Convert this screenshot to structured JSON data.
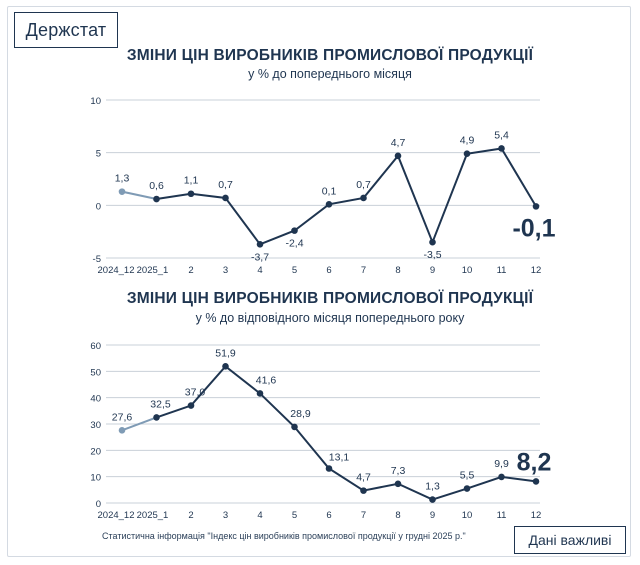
{
  "brand": "Держстат",
  "footer_note": "Статистична інформація \"Індекс цін виробників промислової продукції у грудні 2025 р.\"",
  "badge": "Дані важливі",
  "colors": {
    "line": "#1f3550",
    "line_prev_year": "#7f9bb5",
    "grid": "#c9d0d8",
    "text": "#1f3550"
  },
  "chart_data": [
    {
      "type": "line",
      "title": "ЗМІНИ ЦІН ВИРОБНИКІВ ПРОМИСЛОВОЇ ПРОДУКЦІЇ",
      "subtitle": "у % до попереднього місяця",
      "categories": [
        "2024_12",
        "2025_1",
        "2",
        "3",
        "4",
        "5",
        "6",
        "7",
        "8",
        "9",
        "10",
        "11",
        "12"
      ],
      "values": [
        1.3,
        0.6,
        1.1,
        0.7,
        -3.7,
        -2.4,
        0.1,
        0.7,
        4.7,
        -3.5,
        4.9,
        5.4,
        -0.1
      ],
      "labels": [
        "1,3",
        "0,6",
        "1,1",
        "0,7",
        "-3,7",
        "-2,4",
        "0,1",
        "0,7",
        "4,7",
        "-3,5",
        "4,9",
        "5,4",
        "-0,1"
      ],
      "yticks": [
        -5,
        0,
        5,
        10
      ],
      "ylim": [
        -5,
        10
      ],
      "grid": true
    },
    {
      "type": "line",
      "title": "ЗМІНИ ЦІН ВИРОБНИКІВ ПРОМИСЛОВОЇ ПРОДУКЦІЇ",
      "subtitle": "у % до відповідного місяця попереднього року",
      "categories": [
        "2024_12",
        "2025_1",
        "2",
        "3",
        "4",
        "5",
        "6",
        "7",
        "8",
        "9",
        "10",
        "11",
        "12"
      ],
      "values": [
        27.6,
        32.5,
        37.0,
        51.9,
        41.6,
        28.9,
        13.1,
        4.7,
        7.3,
        1.3,
        5.5,
        9.9,
        8.2
      ],
      "labels": [
        "27,6",
        "32,5",
        "37,0",
        "51,9",
        "41,6",
        "28,9",
        "13,1",
        "4,7",
        "7,3",
        "1,3",
        "5,5",
        "9,9",
        "8,2"
      ],
      "yticks": [
        0,
        10,
        20,
        30,
        40,
        50,
        60
      ],
      "ylim": [
        0,
        60
      ],
      "grid": true
    }
  ]
}
